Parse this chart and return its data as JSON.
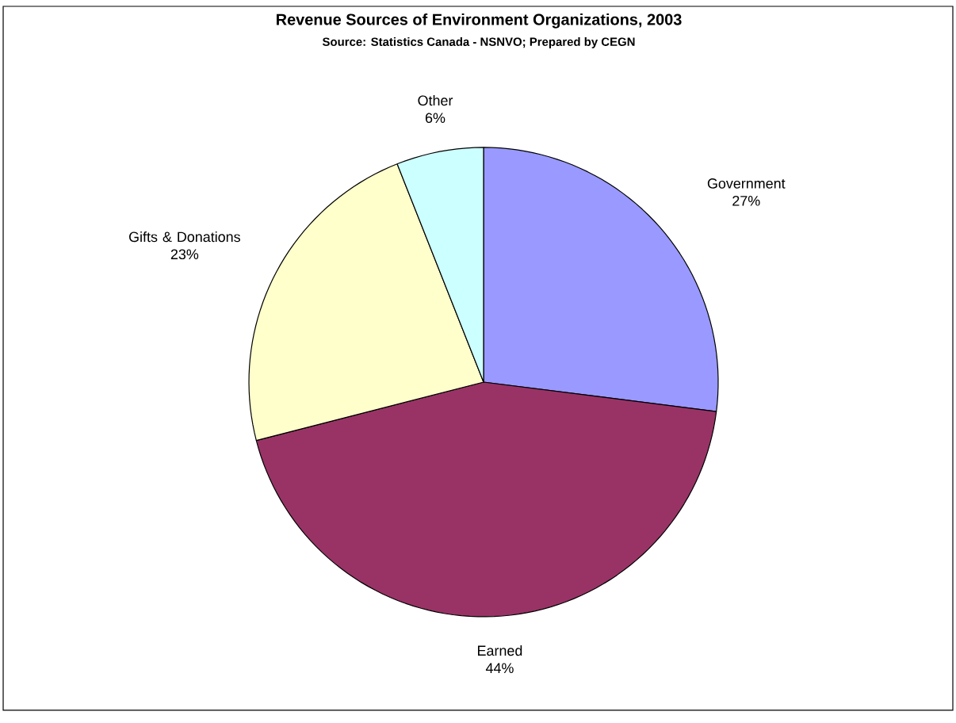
{
  "chart_data": {
    "type": "pie",
    "title": "Revenue Sources of Environment Organizations, 2003",
    "subtitle": "Source:  Statistics Canada - NSNVO; Prepared by CEGN",
    "categories": [
      "Government",
      "Earned",
      "Gifts & Donations",
      "Other"
    ],
    "values": [
      27,
      44,
      23,
      6
    ],
    "colors": [
      "#9999ff",
      "#993366",
      "#ffffcc",
      "#ccffff"
    ],
    "value_labels": [
      "27%",
      "44%",
      "23%",
      "6%"
    ]
  }
}
